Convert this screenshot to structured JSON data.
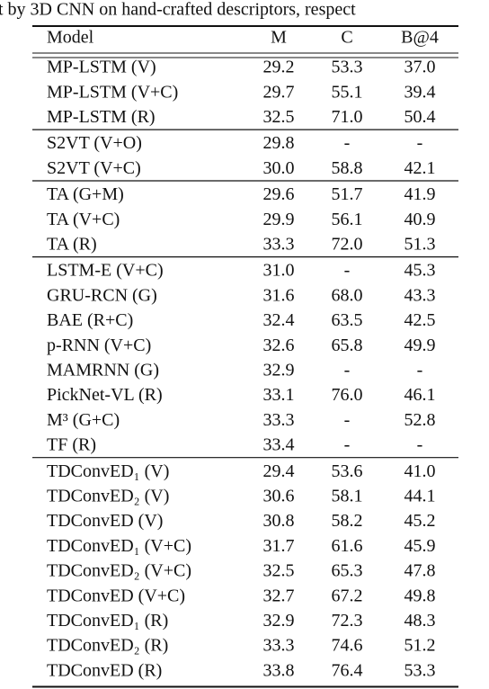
{
  "caption": "t by 3D CNN on hand-crafted descriptors, respect",
  "table": {
    "header": [
      "Model",
      "M",
      "C",
      "B@4"
    ],
    "groups": [
      {
        "rows": [
          [
            "MP-LSTM (V)",
            "29.2",
            "53.3",
            "37.0"
          ],
          [
            "MP-LSTM (V+C)",
            "29.7",
            "55.1",
            "39.4"
          ],
          [
            "MP-LSTM (R)",
            "32.5",
            "71.0",
            "50.4"
          ]
        ]
      },
      {
        "rows": [
          [
            "S2VT (V+O)",
            "29.8",
            "-",
            "-"
          ],
          [
            "S2VT (V+C)",
            "30.0",
            "58.8",
            "42.1"
          ]
        ]
      },
      {
        "rows": [
          [
            "TA (G+M)",
            "29.6",
            "51.7",
            "41.9"
          ],
          [
            "TA (V+C)",
            "29.9",
            "56.1",
            "40.9"
          ],
          [
            "TA (R)",
            "33.3",
            "72.0",
            "51.3"
          ]
        ]
      },
      {
        "rows": [
          [
            "LSTM-E (V+C)",
            "31.0",
            "-",
            "45.3"
          ],
          [
            "GRU-RCN (G)",
            "31.6",
            "68.0",
            "43.3"
          ],
          [
            "BAE (R+C)",
            "32.4",
            "63.5",
            "42.5"
          ],
          [
            "p-RNN (V+C)",
            "32.6",
            "65.8",
            "49.9"
          ],
          [
            "MAMRNN (G)",
            "32.9",
            "-",
            "-"
          ],
          [
            "PickNet-VL (R)",
            "33.1",
            "76.0",
            "46.1"
          ],
          [
            "M³ (G+C)",
            "33.3",
            "-",
            "52.8"
          ],
          [
            "TF (R)",
            "33.4",
            "-",
            "-"
          ]
        ]
      },
      {
        "rows": [
          [
            "TDConvED₁ (V)",
            "29.4",
            "53.6",
            "41.0"
          ],
          [
            "TDConvED₂ (V)",
            "30.6",
            "58.1",
            "44.1"
          ],
          [
            "TDConvED (V)",
            "30.8",
            "58.2",
            "45.2"
          ],
          [
            "TDConvED₁ (V+C)",
            "31.7",
            "61.6",
            "45.9"
          ],
          [
            "TDConvED₂ (V+C)",
            "32.5",
            "65.3",
            "47.8"
          ],
          [
            "TDConvED (V+C)",
            "32.7",
            "67.2",
            "49.8"
          ],
          [
            "TDConvED₁ (R)",
            "32.9",
            "72.3",
            "48.3"
          ],
          [
            "TDConvED₂ (R)",
            "33.3",
            "74.6",
            "51.2"
          ],
          [
            "TDConvED (R)",
            "33.8",
            "76.4",
            "53.3"
          ]
        ]
      }
    ]
  }
}
